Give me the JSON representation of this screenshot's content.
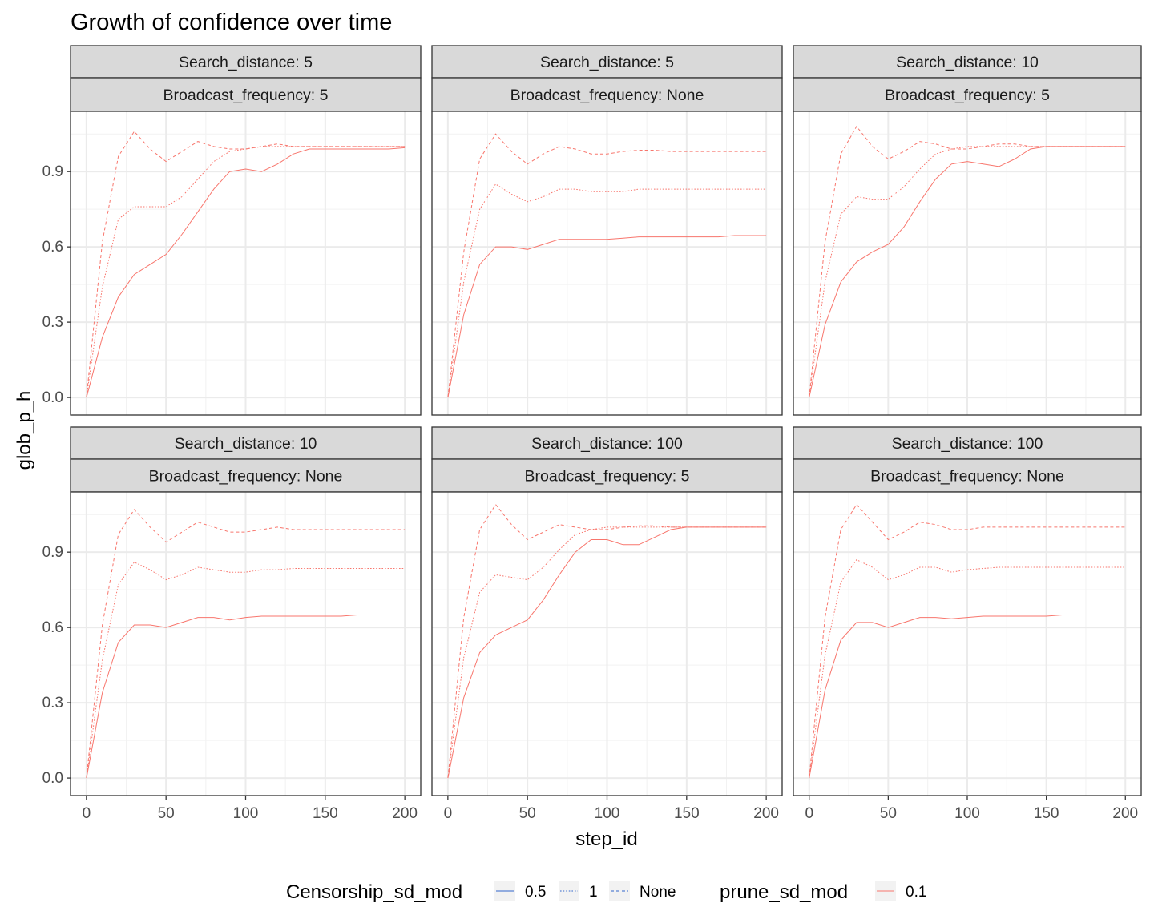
{
  "chart_data": {
    "type": "line",
    "title": "Growth of confidence over time",
    "xlabel": "step_id",
    "ylabel": "glob_p_h",
    "xlim": [
      -10,
      210
    ],
    "ylim": [
      -0.07,
      1.14
    ],
    "x_ticks": [
      0,
      50,
      100,
      150,
      200
    ],
    "y_ticks": [
      0.0,
      0.3,
      0.6,
      0.9
    ],
    "x_tick_labels": [
      "0",
      "50",
      "100",
      "150",
      "200"
    ],
    "y_tick_labels": [
      "0.0",
      "0.3",
      "0.6",
      "0.9"
    ],
    "grid": true,
    "line_color": "#f8766d",
    "legend_swatch_blue": "#3366cc",
    "legend_position": "bottom",
    "legend": {
      "groups": [
        {
          "title": "Censorship_sd_mod",
          "entries": [
            {
              "label": "0.5",
              "linetype": "solid"
            },
            {
              "label": "1",
              "linetype": "dotted"
            },
            {
              "label": "None",
              "linetype": "dashed"
            }
          ]
        },
        {
          "title": "prune_sd_mod",
          "entries": [
            {
              "label": "0.1",
              "linetype": "solid"
            }
          ]
        }
      ]
    },
    "x": [
      0,
      10,
      20,
      30,
      40,
      50,
      60,
      70,
      80,
      90,
      100,
      110,
      120,
      130,
      140,
      150,
      160,
      170,
      180,
      190,
      200
    ],
    "panels": [
      {
        "strip_top": "Search_distance: 5",
        "strip_bottom": "Broadcast_frequency: 5",
        "series": [
          {
            "linetype": "solid",
            "values": [
              0.0,
              0.24,
              0.4,
              0.49,
              0.53,
              0.57,
              0.65,
              0.74,
              0.83,
              0.9,
              0.91,
              0.9,
              0.93,
              0.97,
              0.99,
              0.99,
              0.99,
              0.99,
              0.99,
              0.99,
              0.995
            ]
          },
          {
            "linetype": "dotted",
            "values": [
              0.0,
              0.44,
              0.71,
              0.76,
              0.76,
              0.76,
              0.8,
              0.87,
              0.94,
              0.98,
              0.99,
              1.0,
              1.0,
              1.0,
              1.0,
              1.0,
              1.0,
              1.0,
              1.0,
              1.0,
              1.0
            ]
          },
          {
            "linetype": "dashed",
            "values": [
              0.0,
              0.62,
              0.96,
              1.06,
              0.99,
              0.94,
              0.98,
              1.02,
              1.0,
              0.99,
              0.99,
              1.0,
              1.01,
              1.0,
              1.0,
              1.0,
              1.0,
              1.0,
              1.0,
              1.0,
              1.0
            ]
          }
        ]
      },
      {
        "strip_top": "Search_distance: 5",
        "strip_bottom": "Broadcast_frequency: None",
        "series": [
          {
            "linetype": "solid",
            "values": [
              0.0,
              0.33,
              0.53,
              0.6,
              0.6,
              0.59,
              0.61,
              0.63,
              0.63,
              0.63,
              0.63,
              0.635,
              0.64,
              0.64,
              0.64,
              0.64,
              0.64,
              0.64,
              0.645,
              0.645,
              0.645
            ]
          },
          {
            "linetype": "dotted",
            "values": [
              0.0,
              0.46,
              0.75,
              0.85,
              0.81,
              0.78,
              0.8,
              0.83,
              0.83,
              0.82,
              0.82,
              0.82,
              0.83,
              0.83,
              0.83,
              0.83,
              0.83,
              0.83,
              0.83,
              0.83,
              0.83
            ]
          },
          {
            "linetype": "dashed",
            "values": [
              0.0,
              0.58,
              0.95,
              1.05,
              0.98,
              0.93,
              0.97,
              1.0,
              0.99,
              0.97,
              0.97,
              0.98,
              0.985,
              0.985,
              0.98,
              0.98,
              0.98,
              0.98,
              0.98,
              0.98,
              0.98
            ]
          }
        ]
      },
      {
        "strip_top": "Search_distance: 10",
        "strip_bottom": "Broadcast_frequency: 5",
        "series": [
          {
            "linetype": "solid",
            "values": [
              0.0,
              0.29,
              0.46,
              0.54,
              0.58,
              0.61,
              0.68,
              0.78,
              0.87,
              0.93,
              0.94,
              0.93,
              0.92,
              0.95,
              0.99,
              1.0,
              1.0,
              1.0,
              1.0,
              1.0,
              1.0
            ]
          },
          {
            "linetype": "dotted",
            "values": [
              0.0,
              0.46,
              0.73,
              0.8,
              0.79,
              0.79,
              0.84,
              0.91,
              0.97,
              0.99,
              1.0,
              1.0,
              1.0,
              1.0,
              1.0,
              1.0,
              1.0,
              1.0,
              1.0,
              1.0,
              1.0
            ]
          },
          {
            "linetype": "dashed",
            "values": [
              0.0,
              0.62,
              0.97,
              1.08,
              1.0,
              0.95,
              0.98,
              1.02,
              1.01,
              0.99,
              0.99,
              1.0,
              1.01,
              1.01,
              1.0,
              1.0,
              1.0,
              1.0,
              1.0,
              1.0,
              1.0
            ]
          }
        ]
      },
      {
        "strip_top": "Search_distance: 10",
        "strip_bottom": "Broadcast_frequency: None",
        "series": [
          {
            "linetype": "solid",
            "values": [
              0.0,
              0.34,
              0.54,
              0.61,
              0.61,
              0.6,
              0.62,
              0.64,
              0.64,
              0.63,
              0.64,
              0.645,
              0.645,
              0.645,
              0.645,
              0.645,
              0.645,
              0.65,
              0.65,
              0.65,
              0.65
            ]
          },
          {
            "linetype": "dotted",
            "values": [
              0.0,
              0.47,
              0.77,
              0.86,
              0.83,
              0.79,
              0.81,
              0.84,
              0.83,
              0.82,
              0.82,
              0.83,
              0.83,
              0.835,
              0.835,
              0.835,
              0.835,
              0.835,
              0.835,
              0.835,
              0.835
            ]
          },
          {
            "linetype": "dashed",
            "values": [
              0.0,
              0.61,
              0.97,
              1.07,
              1.0,
              0.94,
              0.98,
              1.02,
              1.0,
              0.98,
              0.98,
              0.99,
              1.0,
              0.99,
              0.99,
              0.99,
              0.99,
              0.99,
              0.99,
              0.99,
              0.99
            ]
          }
        ]
      },
      {
        "strip_top": "Search_distance: 100",
        "strip_bottom": "Broadcast_frequency: 5",
        "series": [
          {
            "linetype": "solid",
            "values": [
              0.0,
              0.32,
              0.5,
              0.57,
              0.6,
              0.63,
              0.71,
              0.81,
              0.9,
              0.95,
              0.95,
              0.93,
              0.93,
              0.96,
              0.99,
              1.0,
              1.0,
              1.0,
              1.0,
              1.0,
              1.0
            ]
          },
          {
            "linetype": "dotted",
            "values": [
              0.0,
              0.48,
              0.74,
              0.81,
              0.8,
              0.79,
              0.84,
              0.91,
              0.97,
              0.99,
              1.0,
              1.0,
              1.0,
              1.0,
              1.0,
              1.0,
              1.0,
              1.0,
              1.0,
              1.0,
              1.0
            ]
          },
          {
            "linetype": "dashed",
            "values": [
              0.0,
              0.64,
              0.99,
              1.09,
              1.01,
              0.95,
              0.98,
              1.01,
              1.0,
              0.99,
              0.99,
              1.0,
              1.005,
              1.005,
              1.0,
              1.0,
              1.0,
              1.0,
              1.0,
              1.0,
              1.0
            ]
          }
        ]
      },
      {
        "strip_top": "Search_distance: 100",
        "strip_bottom": "Broadcast_frequency: None",
        "series": [
          {
            "linetype": "solid",
            "values": [
              0.0,
              0.35,
              0.55,
              0.62,
              0.62,
              0.6,
              0.62,
              0.64,
              0.64,
              0.635,
              0.64,
              0.645,
              0.645,
              0.645,
              0.645,
              0.645,
              0.65,
              0.65,
              0.65,
              0.65,
              0.65
            ]
          },
          {
            "linetype": "dotted",
            "values": [
              0.0,
              0.49,
              0.78,
              0.87,
              0.84,
              0.79,
              0.81,
              0.84,
              0.84,
              0.82,
              0.83,
              0.835,
              0.84,
              0.84,
              0.84,
              0.84,
              0.84,
              0.84,
              0.84,
              0.84,
              0.84
            ]
          },
          {
            "linetype": "dashed",
            "values": [
              0.0,
              0.64,
              0.99,
              1.09,
              1.02,
              0.95,
              0.98,
              1.02,
              1.01,
              0.99,
              0.99,
              1.0,
              1.0,
              1.0,
              1.0,
              1.0,
              1.0,
              1.0,
              1.0,
              1.0,
              1.0
            ]
          }
        ]
      }
    ]
  }
}
